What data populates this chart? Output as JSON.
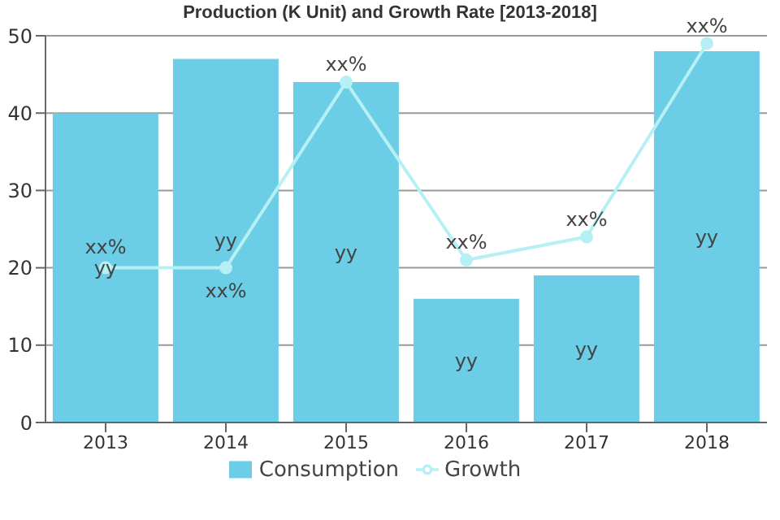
{
  "chart_data": {
    "type": "bar",
    "title": "Production (K Unit) and Growth Rate [2013-2018]",
    "categories": [
      "2013",
      "2014",
      "2015",
      "2016",
      "2017",
      "2018"
    ],
    "series": [
      {
        "name": "Consumption",
        "color": "#6ccde6",
        "values": [
          40,
          47,
          44,
          16,
          19,
          48
        ],
        "value_labels": [
          "yy",
          "yy",
          "yy",
          "yy",
          "yy",
          "yy"
        ]
      },
      {
        "name": "Growth",
        "type": "line",
        "color": "#b6f0f4",
        "values": [
          20,
          20,
          44,
          21,
          24,
          49
        ],
        "value_labels": [
          "xx%",
          "xx%",
          "xx%",
          "xx%",
          "xx%",
          "xx%"
        ]
      }
    ],
    "ylim": [
      0,
      50
    ],
    "yticks": [
      0,
      10,
      20,
      30,
      40,
      50
    ],
    "grid": "y",
    "legend": "bottom",
    "marker": "circle",
    "line_style": "solid"
  }
}
